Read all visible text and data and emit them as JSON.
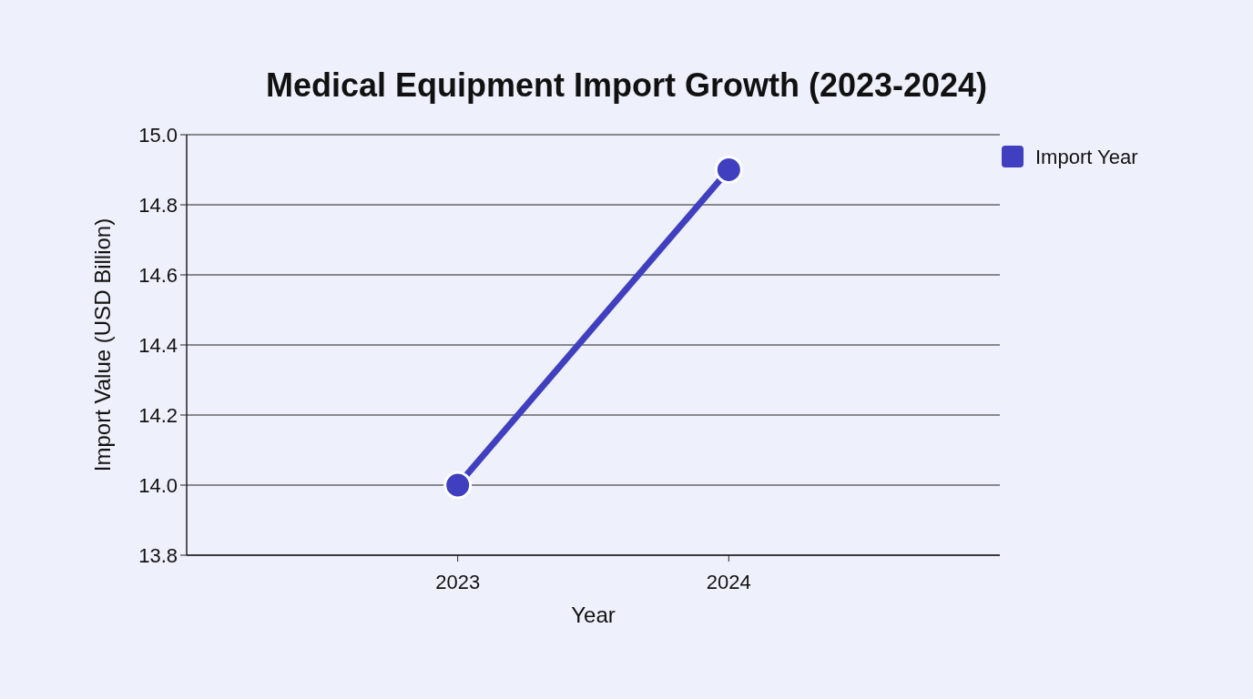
{
  "chart_data": {
    "type": "line",
    "title": "Medical Equipment Import Growth (2023-2024)",
    "xlabel": "Year",
    "ylabel": "Import Value (USD Billion)",
    "categories": [
      "2023",
      "2024"
    ],
    "series": [
      {
        "name": "Import Year",
        "color": "#3f3fbf",
        "values": [
          14.0,
          14.9
        ]
      }
    ],
    "ylim": [
      13.8,
      15.0
    ],
    "yticks": [
      {
        "value": 13.8,
        "label": "13.8"
      },
      {
        "value": 14.0,
        "label": "14.0"
      },
      {
        "value": 14.2,
        "label": "14.2"
      },
      {
        "value": 14.4,
        "label": "14.4"
      },
      {
        "value": 14.6,
        "label": "14.6"
      },
      {
        "value": 14.8,
        "label": "14.8"
      },
      {
        "value": 15.0,
        "label": "15.0"
      }
    ],
    "grid": "y",
    "legend": "top right",
    "marker": "circle",
    "line_style": "solid"
  }
}
